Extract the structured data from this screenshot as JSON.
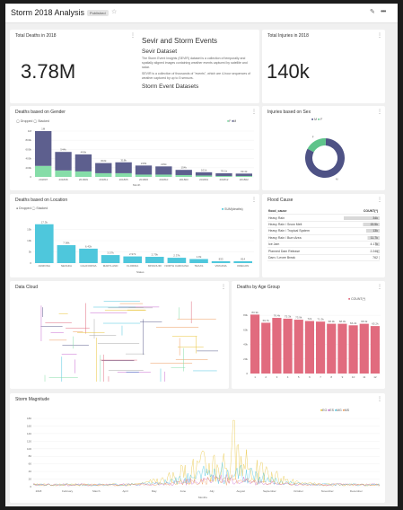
{
  "header": {
    "title": "Storm 2018 Analysis",
    "status": "Published",
    "star": "☆",
    "edit": "✎",
    "more": "•••"
  },
  "kpis": [
    {
      "title": "Total Deaths in 2018",
      "value": "3.78M"
    },
    {
      "title": "Total Injuries in 2018",
      "value": "140k"
    }
  ],
  "markdown": {
    "h1": "Sevir and Storm Events",
    "h2": "Sevir Dataset",
    "p1": "The Storm Event Insights (SEVIR) dataset is a collection of temporally and spatially aligned images containing weather events captured by satellite and radar.",
    "p2": "SEVIR is a collection of thousands of \"events\", which are 4-hour sequences of weather captured by up to 5 sensors.",
    "h2b": "Storm Event Datasets"
  },
  "charts": {
    "gender": {
      "title": "Deaths based on Gender",
      "legend": [
        "Dropped",
        "Stacked"
      ],
      "legend2": [
        "F",
        "M"
      ],
      "xlabel": "Month"
    },
    "sex": {
      "title": "Injuries based on Sex",
      "legend": [
        "M",
        "F"
      ]
    },
    "location": {
      "title": "Deaths based on Location",
      "legend": [
        "Dropped",
        "Stacked"
      ],
      "series_label": "SUM(deaths)",
      "xlabel": "States"
    },
    "flood": {
      "title": "Flood Cause",
      "col1": "flood_cause",
      "col2": "COUNT(*)"
    },
    "cloud": {
      "title": "Data Cloud"
    },
    "age": {
      "title": "Deaths by Age Group",
      "legend": "COUNT(*)"
    },
    "magnitude": {
      "title": "Storm Magnitude",
      "xlabel": "Months"
    }
  },
  "chart_data": [
    {
      "type": "bar",
      "title": "Deaths based on Gender",
      "xlabel": "Month",
      "categories": [
        "201807",
        "201808",
        "201809",
        "201811",
        "201805",
        "201806",
        "201810",
        "201803",
        "201801",
        "201812",
        "201802"
      ],
      "series": [
        {
          "name": "F",
          "values": [
            0.24,
            0.14,
            0.12,
            0.08,
            0.08,
            0.05,
            0.05,
            0.04,
            0.03,
            0.02,
            0.02
          ]
        },
        {
          "name": "M",
          "values": [
            0.76,
            0.405,
            0.37,
            0.222,
            0.238,
            0.198,
            0.179,
            0.113,
            0.071,
            0.058,
            0.052
          ]
        }
      ],
      "totals": [
        "1M",
        "544k",
        "490k",
        "302k",
        "318k",
        "248k",
        "229k",
        "154k",
        "101k",
        "78.1k",
        "69.4k"
      ],
      "yticks": [
        "0",
        "200k",
        "400k",
        "600k",
        "800k",
        "1M"
      ],
      "ylim": [
        0,
        1000000
      ]
    },
    {
      "type": "pie",
      "title": "Injuries based on Sex",
      "categories": [
        "M",
        "F"
      ],
      "values": [
        0.82,
        0.18
      ]
    },
    {
      "type": "bar",
      "title": "Deaths based on Location",
      "xlabel": "States",
      "categories": [
        "ARIZONA",
        "NEVADA",
        "CALIFORNIA",
        "MARYLAND",
        "FLORIDA",
        "MISSOURI",
        "NORTH CAROLINA",
        "TEXAS",
        "VIRGINIA",
        "OREGON"
      ],
      "values": [
        17.3,
        7.98,
        6.42,
        3.57,
        2.97,
        2.79,
        2.37,
        1.8,
        0.833,
        0.814
      ],
      "labels": [
        "17.3k",
        "7.98k",
        "6.42k",
        "3.57k",
        "2.97k",
        "2.79k",
        "2.37k",
        "1.8k",
        "833",
        "814"
      ],
      "yticks": [
        "0",
        "5k",
        "10k",
        "15k"
      ],
      "ylim": [
        0,
        18000
      ]
    },
    {
      "type": "table",
      "title": "Flood Cause",
      "columns": [
        "flood_cause",
        "COUNT(*)"
      ],
      "rows": [
        [
          "Heavy Rain",
          "34k"
        ],
        [
          "Heavy Rain / Snow Melt",
          "15.5k"
        ],
        [
          "Heavy Rain / Tropical System",
          "13k"
        ],
        [
          "Heavy Rain / Burn Area",
          "11.7k"
        ],
        [
          "Ice Jam",
          "4.17k"
        ],
        [
          "Planned Dam Release",
          "2.24k"
        ],
        [
          "Dam / Levee Break",
          "762"
        ]
      ]
    },
    {
      "type": "bar",
      "title": "Deaths by Age Group",
      "series_label": "COUNT(*)",
      "categories": [
        "1",
        "2",
        "3",
        "4",
        "5",
        "6",
        "7",
        "8",
        "9",
        "10",
        "11",
        "12"
      ],
      "values": [
        80.9,
        69.7,
        76.4,
        75.3,
        73.9,
        72.1,
        71.3,
        68.3,
        68.3,
        66.2,
        68.3,
        65.2
      ],
      "labels": [
        "80.9k",
        "69.7k",
        "76.4k",
        "75.3k",
        "73.9k",
        "72k",
        "71.3k",
        "68.3k",
        "68.3k",
        "66.2k",
        "68.3k",
        "65.2k"
      ],
      "yticks": [
        "0",
        "20k",
        "40k",
        "60k",
        "80k"
      ],
      "ylim": [
        0,
        90000
      ]
    },
    {
      "type": "line",
      "title": "Storm Magnitude",
      "xlabel": "Months",
      "x": [
        "2018",
        "February",
        "March",
        "April",
        "May",
        "June",
        "July",
        "August",
        "September",
        "October",
        "November",
        "December"
      ],
      "series": [
        {
          "name": "EG",
          "color": "#e9c43c"
        },
        {
          "name": "ES",
          "color": "#c96bd0"
        },
        {
          "name": "MG",
          "color": "#4fc6de"
        },
        {
          "name": "MS",
          "color": "#ee9b5c"
        }
      ],
      "yticks": [
        "0",
        "20",
        "40",
        "60",
        "80",
        "100",
        "120",
        "140",
        "160",
        "180"
      ],
      "ylim": [
        0,
        180
      ]
    }
  ],
  "flood_bar_fracs": [
    1,
    0.46,
    0.38,
    0.34,
    0.12,
    0.07,
    0.02
  ]
}
